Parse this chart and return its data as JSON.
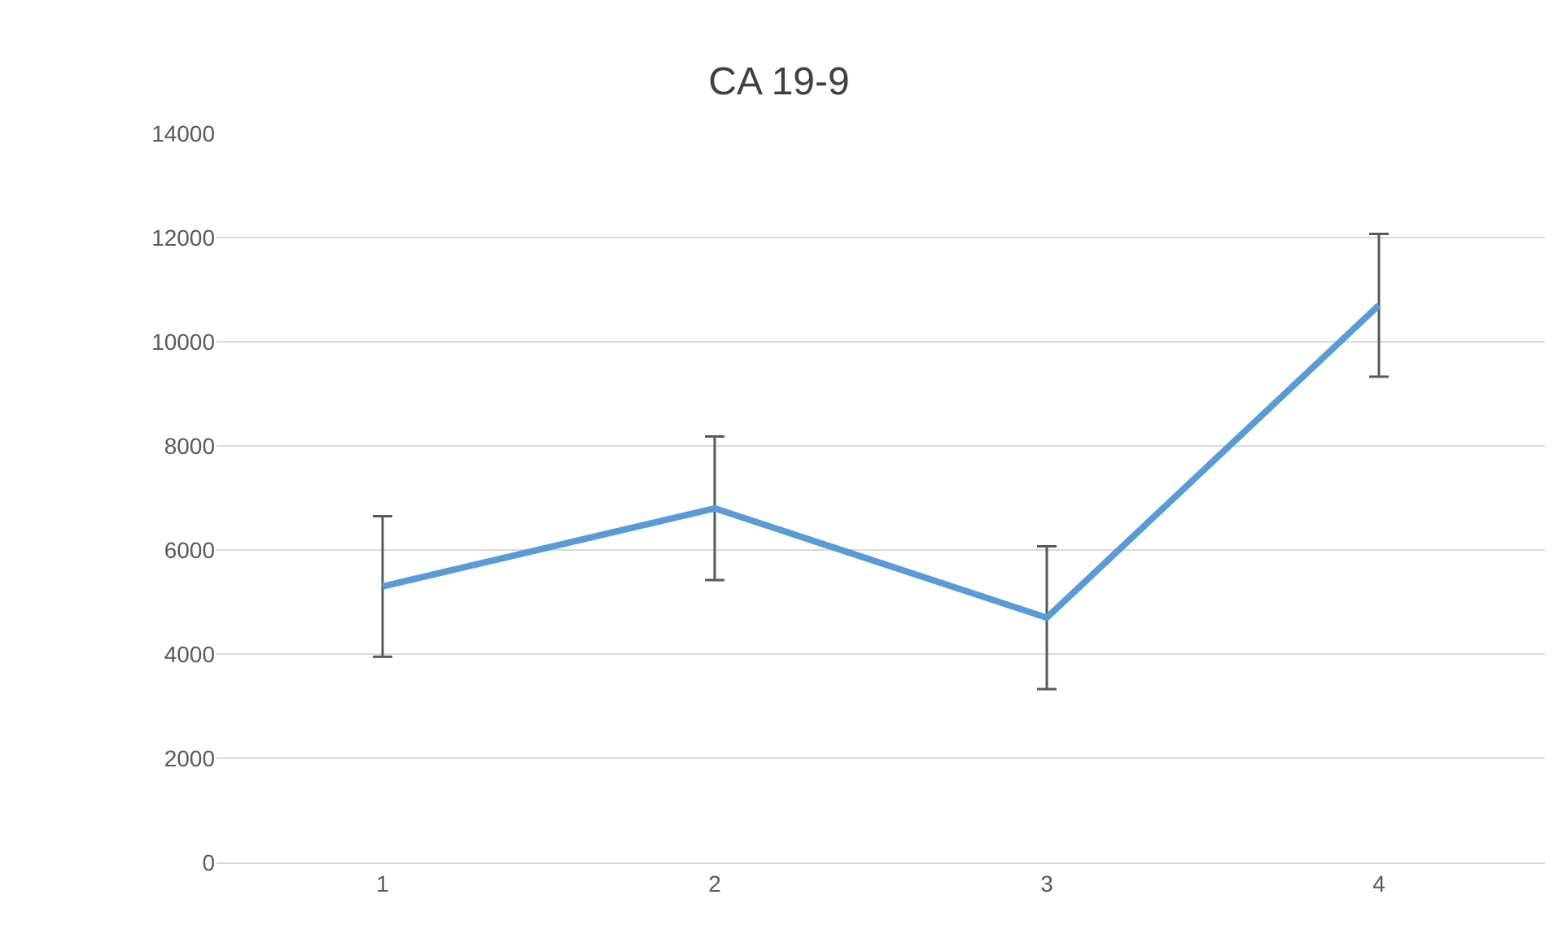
{
  "chart_data": {
    "type": "line",
    "title": "CA 19-9",
    "categories": [
      "1",
      "2",
      "3",
      "4"
    ],
    "series": [
      {
        "color": "#5b9bd5",
        "values": [
          5300,
          6800,
          4700,
          10700
        ],
        "errors": [
          1350,
          1380,
          1370,
          1370
        ]
      }
    ],
    "ylim": [
      0,
      14000
    ],
    "yticks": [
      0,
      2000,
      4000,
      6000,
      8000,
      10000,
      12000,
      14000
    ],
    "grid": "y",
    "marker": "none",
    "line_style": "solid"
  }
}
